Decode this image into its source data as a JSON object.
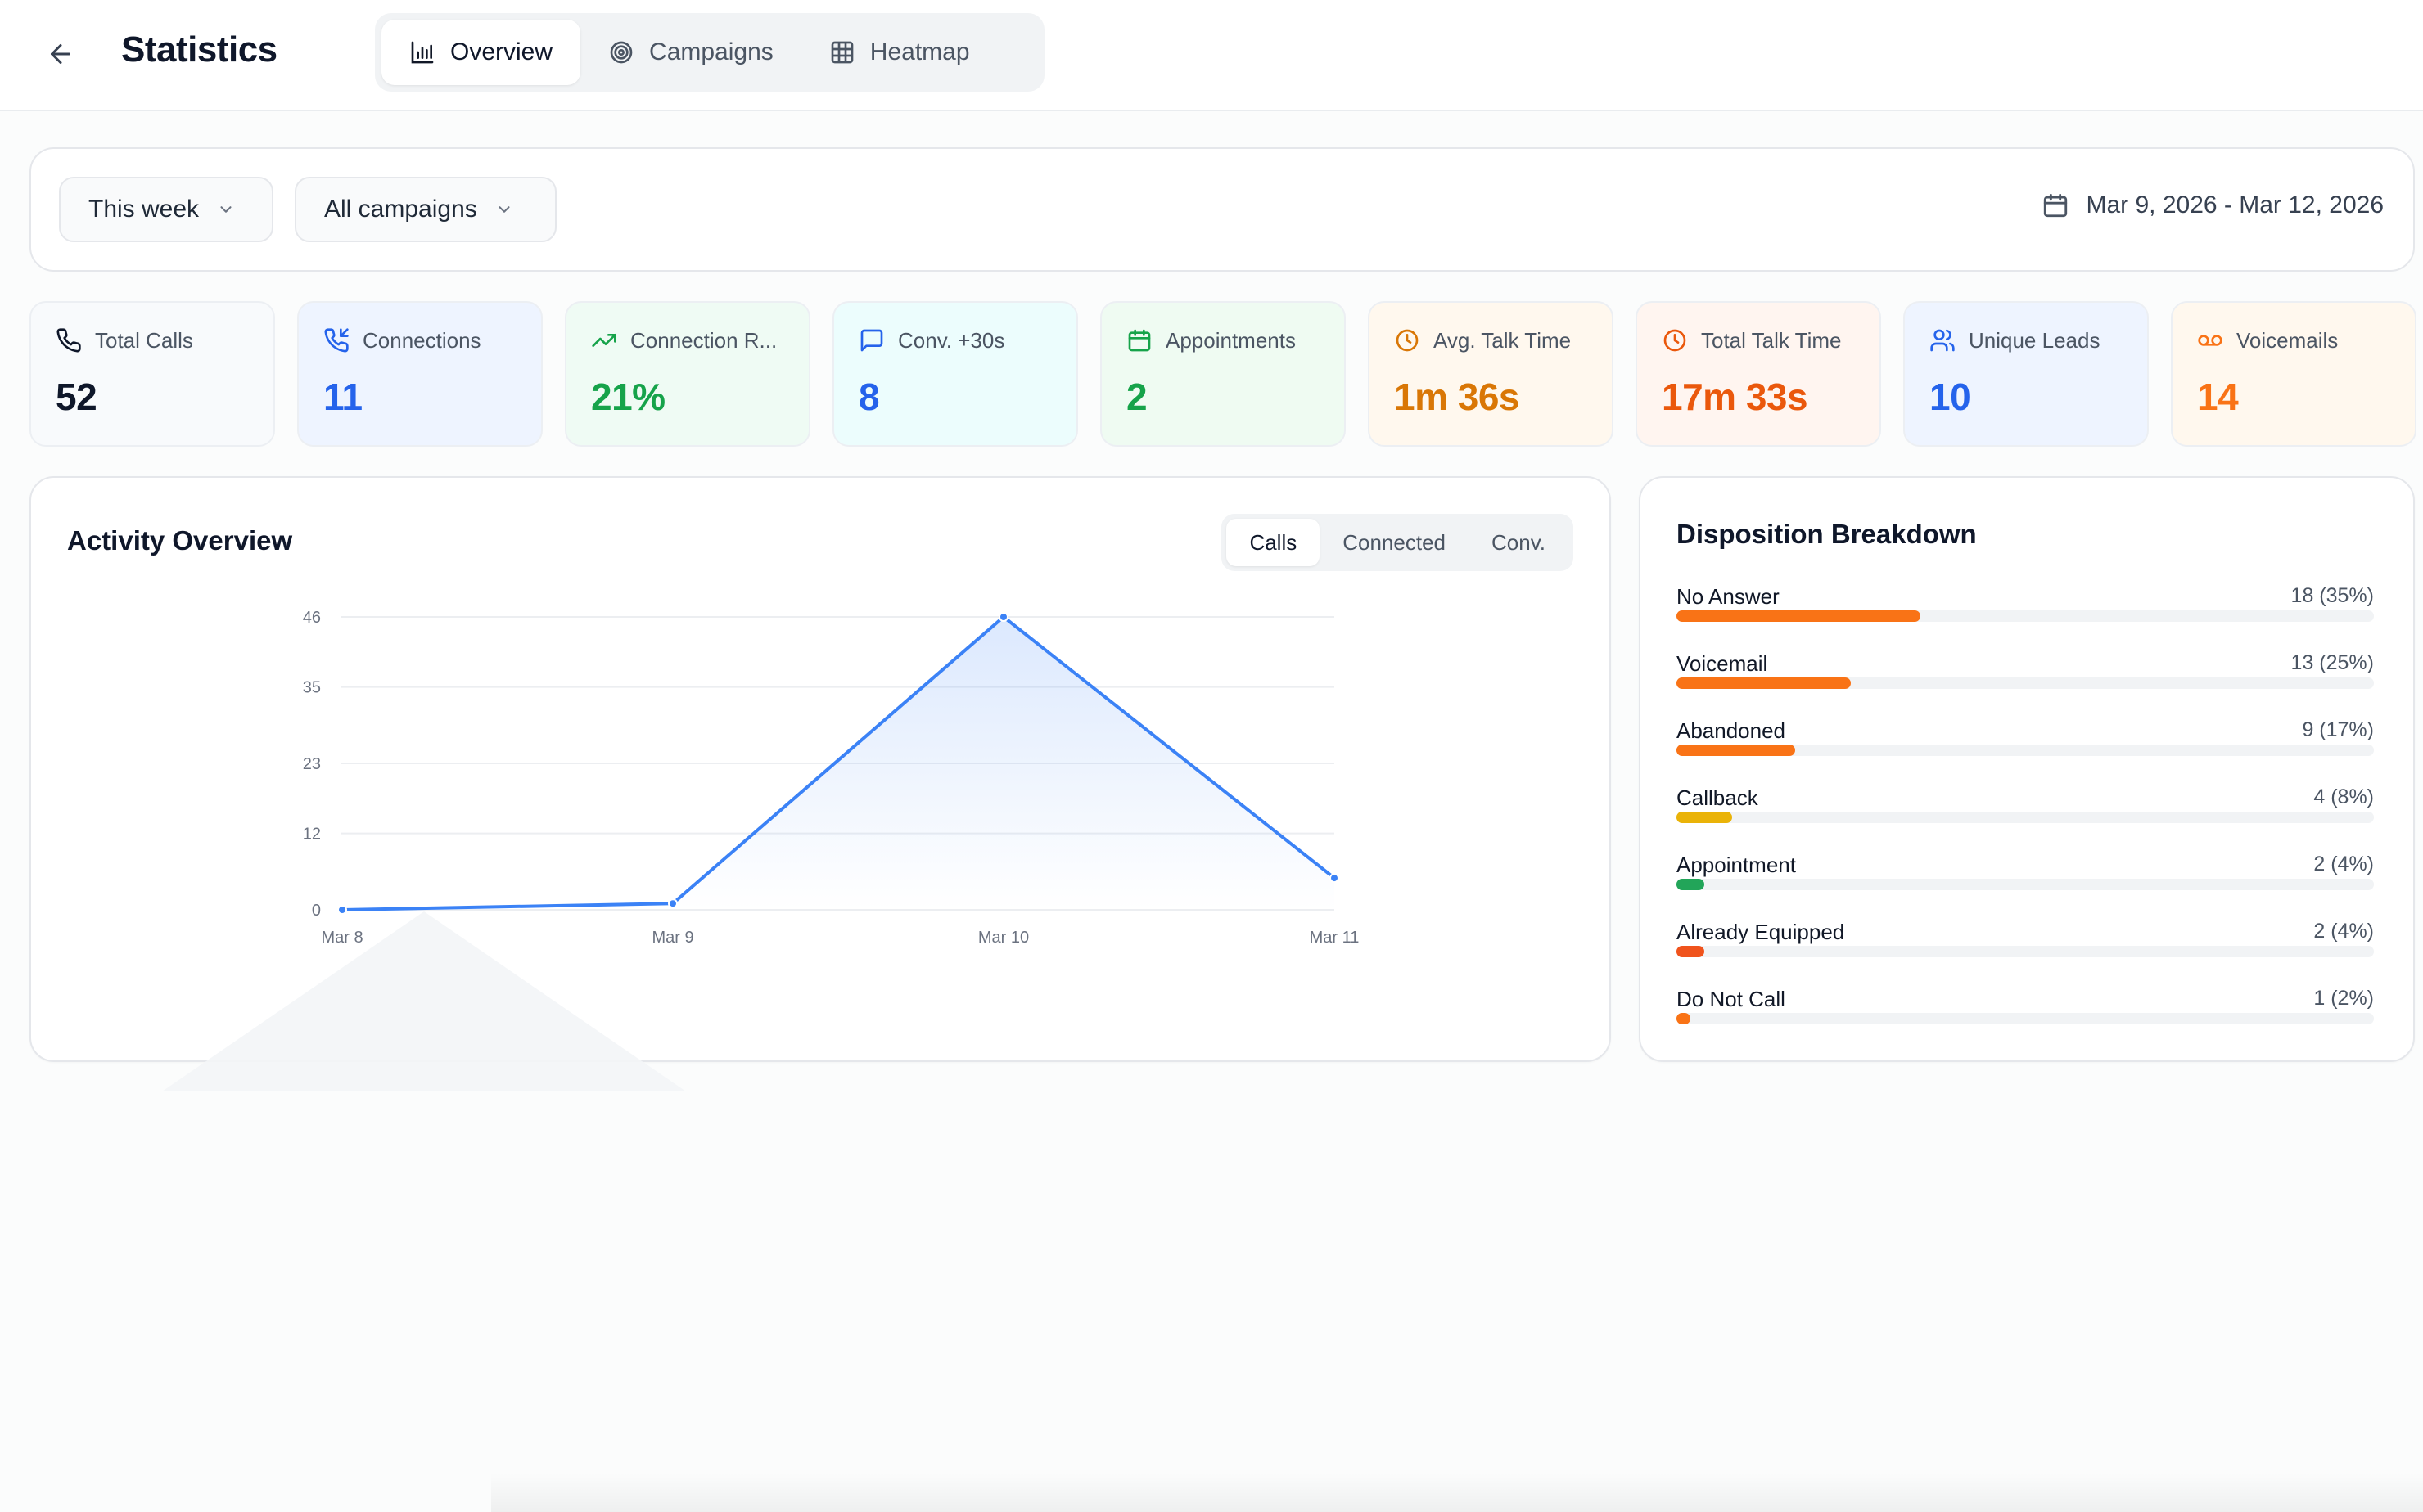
{
  "header": {
    "title": "Statistics",
    "tabs": [
      {
        "label": "Overview",
        "icon": "bar-chart-icon",
        "active": true
      },
      {
        "label": "Campaigns",
        "icon": "target-icon",
        "active": false
      },
      {
        "label": "Heatmap",
        "icon": "grid-icon",
        "active": false
      }
    ]
  },
  "filters": {
    "period": "This week",
    "campaign": "All campaigns",
    "date_range": "Mar 9, 2026 - Mar 12, 2026"
  },
  "stats": [
    {
      "label": "Total Calls",
      "value": "52",
      "icon": "phone-icon",
      "color": "#0f172a",
      "bg": "#f8fafc"
    },
    {
      "label": "Connections",
      "value": "11",
      "icon": "phone-incoming-icon",
      "color": "#2563eb",
      "bg": "#eef4ff"
    },
    {
      "label": "Connection R...",
      "value": "21%",
      "icon": "trending-up-icon",
      "color": "#16a34a",
      "bg": "#effbf4"
    },
    {
      "label": "Conv. +30s",
      "value": "8",
      "icon": "message-icon",
      "color": "#2563eb",
      "bg": "#ecfdfd"
    },
    {
      "label": "Appointments",
      "value": "2",
      "icon": "calendar-icon",
      "color": "#16a34a",
      "bg": "#effbf2"
    },
    {
      "label": "Avg. Talk Time",
      "value": "1m 36s",
      "icon": "clock-icon",
      "color": "#d97706",
      "bg": "#fff8ee"
    },
    {
      "label": "Total Talk Time",
      "value": "17m 33s",
      "icon": "clock-icon",
      "color": "#ea580c",
      "bg": "#fff5f0"
    },
    {
      "label": "Unique Leads",
      "value": "10",
      "icon": "users-icon",
      "color": "#2563eb",
      "bg": "#eef4ff"
    },
    {
      "label": "Voicemails",
      "value": "14",
      "icon": "voicemail-icon",
      "color": "#f97316",
      "bg": "#fff8ee"
    }
  ],
  "activity": {
    "title": "Activity Overview",
    "toggles": [
      {
        "label": "Calls",
        "active": true
      },
      {
        "label": "Connected",
        "active": false
      },
      {
        "label": "Conv.",
        "active": false
      }
    ]
  },
  "chart_data": {
    "type": "area",
    "categories": [
      "Mar 8",
      "Mar 9",
      "Mar 10",
      "Mar 11"
    ],
    "series": [
      {
        "values": [
          0,
          1,
          46,
          5
        ],
        "color": "#3b82f6"
      }
    ],
    "y_ticks": [
      "0",
      "12",
      "23",
      "35",
      "46"
    ],
    "ylim": [
      0,
      46
    ],
    "grid": true,
    "legend": "none"
  },
  "disposition": {
    "title": "Disposition Breakdown",
    "items": [
      {
        "label": "No Answer",
        "value": "18 (35%)",
        "percent": 35,
        "color": "#f97316"
      },
      {
        "label": "Voicemail",
        "value": "13 (25%)",
        "percent": 25,
        "color": "#f97316"
      },
      {
        "label": "Abandoned",
        "value": "9 (17%)",
        "percent": 17,
        "color": "#f97316"
      },
      {
        "label": "Callback",
        "value": "4 (8%)",
        "percent": 8,
        "color": "#eab308"
      },
      {
        "label": "Appointment",
        "value": "2 (4%)",
        "percent": 4,
        "color": "#22a559"
      },
      {
        "label": "Already Equipped",
        "value": "2 (4%)",
        "percent": 4,
        "color": "#f0531c"
      },
      {
        "label": "Do Not Call",
        "value": "1 (2%)",
        "percent": 2,
        "color": "#f97316"
      }
    ]
  }
}
